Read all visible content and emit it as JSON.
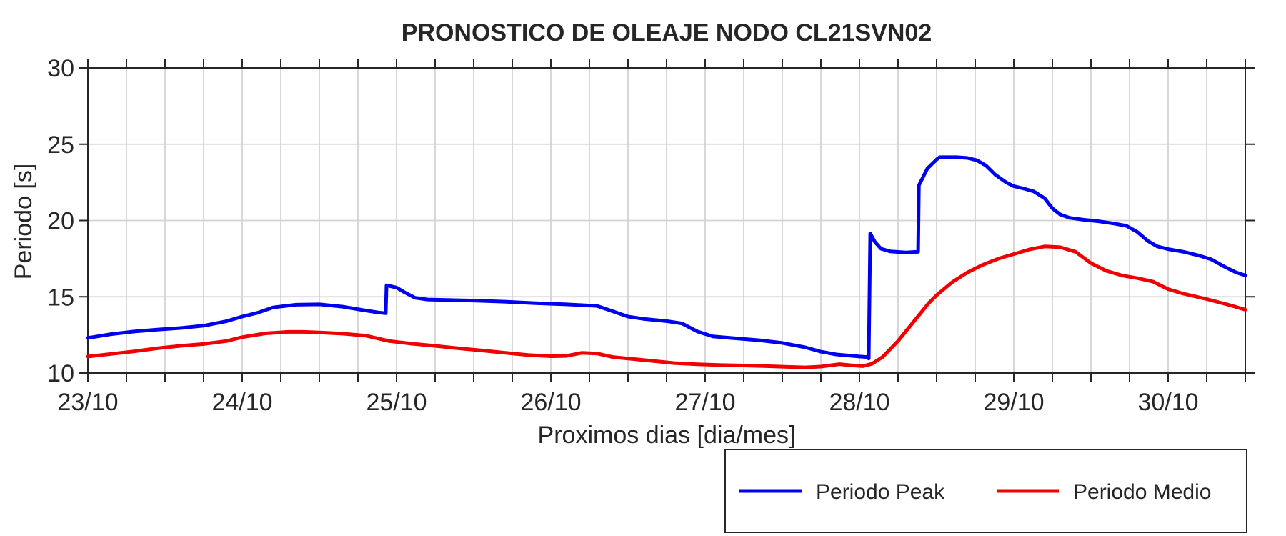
{
  "chart_data": {
    "type": "line",
    "title": "PRONOSTICO DE OLEAJE NODO CL21SVN02",
    "xlabel": "Proximos dias [dia/mes]",
    "ylabel": "Periodo [s]",
    "xlim": [
      0,
      7.5
    ],
    "ylim": [
      10,
      30
    ],
    "x_unit": "days since 23/10 00:00",
    "x_major_ticks": [
      0,
      1,
      2,
      3,
      4,
      5,
      6,
      7
    ],
    "x_tick_labels": [
      "23/10",
      "24/10",
      "25/10",
      "26/10",
      "27/10",
      "28/10",
      "29/10",
      "30/10"
    ],
    "x_minor_step": 0.25,
    "y_major_ticks": [
      10,
      15,
      20,
      25,
      30
    ],
    "y_tick_labels": [
      "10",
      "15",
      "20",
      "25",
      "30"
    ],
    "grid": {
      "x_minor": true,
      "y_major": true,
      "color": "#d3d3d3"
    },
    "axis_color": "#262626",
    "legend_position": "below-right",
    "series": [
      {
        "name": "Periodo Peak",
        "color": "#0000f0",
        "points": [
          [
            0,
            12.3
          ],
          [
            0.15,
            12.55
          ],
          [
            0.3,
            12.72
          ],
          [
            0.45,
            12.85
          ],
          [
            0.6,
            12.95
          ],
          [
            0.75,
            13.1
          ],
          [
            0.9,
            13.4
          ],
          [
            1.0,
            13.7
          ],
          [
            1.1,
            13.95
          ],
          [
            1.2,
            14.3
          ],
          [
            1.35,
            14.48
          ],
          [
            1.5,
            14.5
          ],
          [
            1.65,
            14.35
          ],
          [
            1.8,
            14.1
          ],
          [
            1.88,
            13.97
          ],
          [
            1.93,
            13.92
          ],
          [
            1.935,
            15.75
          ],
          [
            2.0,
            15.6
          ],
          [
            2.05,
            15.3
          ],
          [
            2.12,
            14.93
          ],
          [
            2.2,
            14.82
          ],
          [
            2.35,
            14.78
          ],
          [
            2.5,
            14.75
          ],
          [
            2.7,
            14.68
          ],
          [
            2.9,
            14.58
          ],
          [
            3.1,
            14.5
          ],
          [
            3.3,
            14.4
          ],
          [
            3.4,
            14.05
          ],
          [
            3.5,
            13.7
          ],
          [
            3.6,
            13.55
          ],
          [
            3.75,
            13.4
          ],
          [
            3.85,
            13.25
          ],
          [
            3.95,
            12.72
          ],
          [
            4.05,
            12.4
          ],
          [
            4.2,
            12.27
          ],
          [
            4.35,
            12.15
          ],
          [
            4.5,
            11.97
          ],
          [
            4.65,
            11.68
          ],
          [
            4.75,
            11.4
          ],
          [
            4.85,
            11.22
          ],
          [
            5.0,
            11.08
          ],
          [
            5.05,
            11.05
          ],
          [
            5.06,
            10.95
          ],
          [
            5.07,
            19.15
          ],
          [
            5.1,
            18.6
          ],
          [
            5.14,
            18.15
          ],
          [
            5.2,
            17.97
          ],
          [
            5.3,
            17.9
          ],
          [
            5.38,
            17.95
          ],
          [
            5.385,
            22.3
          ],
          [
            5.44,
            23.4
          ],
          [
            5.5,
            24.0
          ],
          [
            5.52,
            24.15
          ],
          [
            5.63,
            24.15
          ],
          [
            5.7,
            24.1
          ],
          [
            5.76,
            23.95
          ],
          [
            5.82,
            23.6
          ],
          [
            5.88,
            23.0
          ],
          [
            5.95,
            22.5
          ],
          [
            6.0,
            22.25
          ],
          [
            6.07,
            22.08
          ],
          [
            6.13,
            21.9
          ],
          [
            6.2,
            21.45
          ],
          [
            6.25,
            20.8
          ],
          [
            6.3,
            20.4
          ],
          [
            6.36,
            20.18
          ],
          [
            6.45,
            20.05
          ],
          [
            6.55,
            19.95
          ],
          [
            6.65,
            19.8
          ],
          [
            6.73,
            19.65
          ],
          [
            6.8,
            19.25
          ],
          [
            6.87,
            18.65
          ],
          [
            6.93,
            18.3
          ],
          [
            7.0,
            18.12
          ],
          [
            7.1,
            17.95
          ],
          [
            7.2,
            17.7
          ],
          [
            7.28,
            17.45
          ],
          [
            7.36,
            17.0
          ],
          [
            7.44,
            16.6
          ],
          [
            7.5,
            16.4
          ]
        ]
      },
      {
        "name": "Periodo Medio",
        "color": "#f00000",
        "points": [
          [
            0,
            11.08
          ],
          [
            0.15,
            11.25
          ],
          [
            0.3,
            11.42
          ],
          [
            0.45,
            11.62
          ],
          [
            0.6,
            11.78
          ],
          [
            0.75,
            11.9
          ],
          [
            0.9,
            12.1
          ],
          [
            1.0,
            12.35
          ],
          [
            1.15,
            12.6
          ],
          [
            1.3,
            12.7
          ],
          [
            1.4,
            12.7
          ],
          [
            1.5,
            12.66
          ],
          [
            1.65,
            12.58
          ],
          [
            1.8,
            12.45
          ],
          [
            1.95,
            12.1
          ],
          [
            2.1,
            11.92
          ],
          [
            2.25,
            11.78
          ],
          [
            2.4,
            11.62
          ],
          [
            2.55,
            11.48
          ],
          [
            2.7,
            11.33
          ],
          [
            2.85,
            11.18
          ],
          [
            3.0,
            11.1
          ],
          [
            3.1,
            11.12
          ],
          [
            3.2,
            11.32
          ],
          [
            3.3,
            11.28
          ],
          [
            3.4,
            11.05
          ],
          [
            3.5,
            10.95
          ],
          [
            3.65,
            10.8
          ],
          [
            3.8,
            10.65
          ],
          [
            3.95,
            10.57
          ],
          [
            4.1,
            10.52
          ],
          [
            4.25,
            10.49
          ],
          [
            4.4,
            10.45
          ],
          [
            4.55,
            10.4
          ],
          [
            4.65,
            10.37
          ],
          [
            4.75,
            10.42
          ],
          [
            4.87,
            10.58
          ],
          [
            4.95,
            10.5
          ],
          [
            5.02,
            10.45
          ],
          [
            5.08,
            10.6
          ],
          [
            5.15,
            11.05
          ],
          [
            5.25,
            12.1
          ],
          [
            5.35,
            13.35
          ],
          [
            5.45,
            14.6
          ],
          [
            5.5,
            15.1
          ],
          [
            5.6,
            15.95
          ],
          [
            5.7,
            16.6
          ],
          [
            5.8,
            17.1
          ],
          [
            5.9,
            17.5
          ],
          [
            6.0,
            17.8
          ],
          [
            6.1,
            18.1
          ],
          [
            6.2,
            18.3
          ],
          [
            6.3,
            18.25
          ],
          [
            6.4,
            17.95
          ],
          [
            6.5,
            17.2
          ],
          [
            6.6,
            16.7
          ],
          [
            6.7,
            16.4
          ],
          [
            6.8,
            16.22
          ],
          [
            6.9,
            16.0
          ],
          [
            7.0,
            15.5
          ],
          [
            7.1,
            15.2
          ],
          [
            7.25,
            14.85
          ],
          [
            7.4,
            14.45
          ],
          [
            7.5,
            14.15
          ]
        ]
      }
    ]
  }
}
